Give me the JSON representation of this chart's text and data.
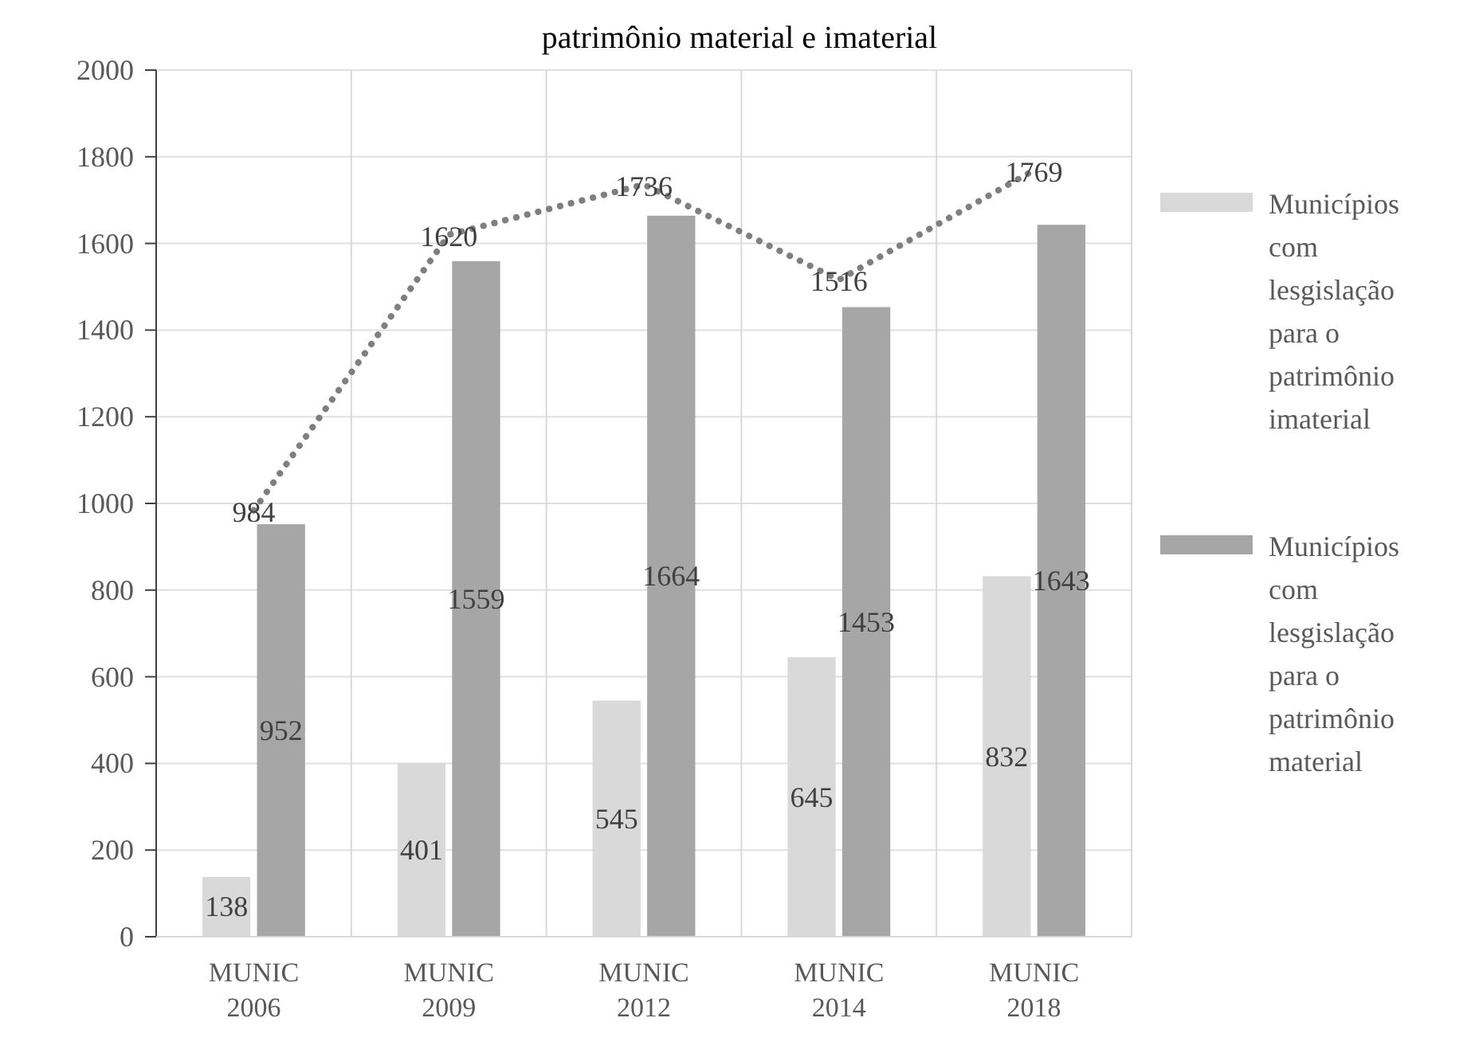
{
  "chart_data": {
    "type": "bar",
    "title": "patrimônio material e imaterial",
    "categories": [
      "MUNIC\n2006",
      "MUNIC\n2009",
      "MUNIC\n2012",
      "MUNIC\n2014",
      "MUNIC\n2018"
    ],
    "series": [
      {
        "name": "Municípios com lesgislação para o patrimônio imaterial",
        "color": "#d9d9d9",
        "values": [
          138,
          401,
          545,
          645,
          832
        ]
      },
      {
        "name": "Municípios com lesgislação para o patrimônio material",
        "color": "#a6a6a6",
        "values": [
          952,
          1559,
          1664,
          1453,
          1643
        ]
      },
      {
        "type": "line",
        "color": "#7f7f7f",
        "values": [
          984,
          1620,
          1736,
          1516,
          1769
        ],
        "line_style": "dotted",
        "marker": "none"
      }
    ],
    "ylim": [
      0,
      2000
    ],
    "yticks": [
      0,
      200,
      400,
      600,
      800,
      1000,
      1200,
      1400,
      1600,
      1800,
      2000
    ],
    "grid": true,
    "legend": "right",
    "data_labels": true
  }
}
